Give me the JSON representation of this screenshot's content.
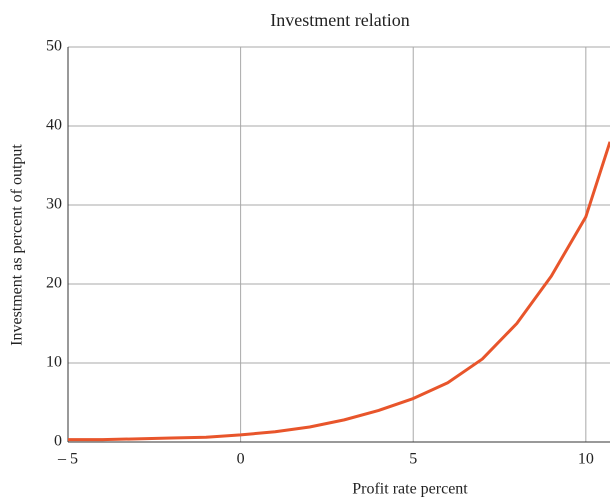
{
  "chart_data": {
    "type": "line",
    "title": "Investment relation",
    "x_label": "Profit rate percent",
    "y_label": "Investment as percent of output",
    "x": [
      -5,
      -4,
      -3,
      -2,
      -1,
      0,
      1,
      2,
      3,
      4,
      5,
      6,
      7,
      8,
      9,
      10,
      10.7
    ],
    "series": [
      {
        "name": "Investment",
        "color": "#e8552b",
        "values": [
          0.3,
          0.3,
          0.4,
          0.5,
          0.6,
          0.9,
          1.3,
          1.9,
          2.8,
          4.0,
          5.5,
          7.5,
          10.5,
          15,
          21,
          28.5,
          38
        ]
      }
    ],
    "xlim": [
      -5,
      10.7
    ],
    "ylim": [
      0,
      50
    ],
    "xticks": [
      {
        "value": -5,
        "label": "– 5"
      },
      0,
      5,
      10
    ],
    "yticks": [
      0,
      10,
      20,
      30,
      40,
      50
    ],
    "grid": true
  }
}
